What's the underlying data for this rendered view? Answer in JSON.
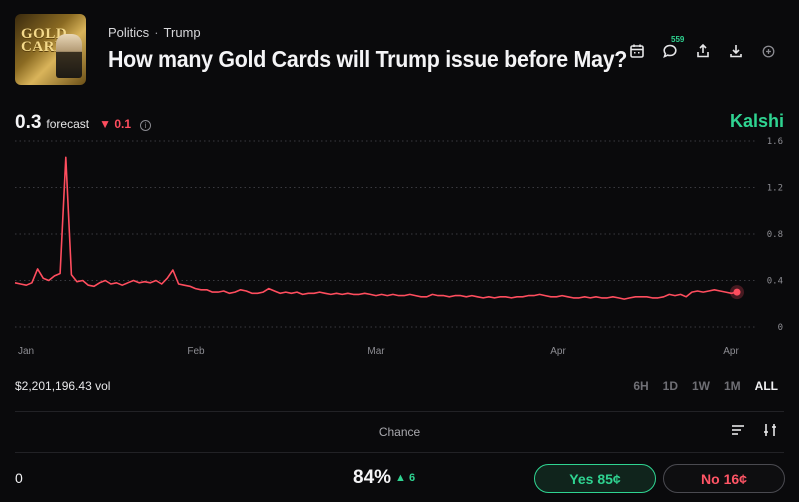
{
  "header": {
    "breadcrumb": [
      "Politics",
      "Trump"
    ],
    "breadcrumb_sep": "·",
    "title": "How many Gold Cards will Trump issue before May?",
    "thumbnail_text": "GOLD CARD",
    "comment_count": "559",
    "icons": [
      "calendar-icon",
      "comment-icon",
      "share-icon",
      "download-icon",
      "plus-circle-icon"
    ]
  },
  "forecast": {
    "value": "0.3",
    "label": "forecast",
    "delta_arrow": "▼",
    "delta": "0.1",
    "info": "i"
  },
  "brand": "Kalshi",
  "chart_data": {
    "type": "line",
    "x_ticks": [
      "Jan",
      "Feb",
      "Mar",
      "Apr",
      "Apr"
    ],
    "y_ticks": [
      "1.6",
      "1.2",
      "0.8",
      "0.4",
      "0"
    ],
    "ylim": [
      0,
      1.6
    ],
    "grid": true,
    "color": "#ff4d5e",
    "series": [
      {
        "values": [
          0.38,
          0.37,
          0.36,
          0.38,
          0.5,
          0.42,
          0.4,
          0.44,
          0.46,
          1.46,
          0.45,
          0.39,
          0.4,
          0.36,
          0.35,
          0.38,
          0.4,
          0.37,
          0.38,
          0.36,
          0.38,
          0.4,
          0.38,
          0.39,
          0.38,
          0.4,
          0.37,
          0.42,
          0.49,
          0.37,
          0.36,
          0.35,
          0.33,
          0.32,
          0.32,
          0.3,
          0.3,
          0.31,
          0.29,
          0.3,
          0.32,
          0.31,
          0.29,
          0.29,
          0.3,
          0.33,
          0.31,
          0.29,
          0.3,
          0.29,
          0.3,
          0.28,
          0.29,
          0.29,
          0.3,
          0.29,
          0.28,
          0.29,
          0.28,
          0.29,
          0.28,
          0.28,
          0.29,
          0.28,
          0.27,
          0.28,
          0.27,
          0.28,
          0.27,
          0.27,
          0.28,
          0.27,
          0.26,
          0.26,
          0.28,
          0.27,
          0.27,
          0.26,
          0.27,
          0.27,
          0.26,
          0.27,
          0.26,
          0.25,
          0.26,
          0.25,
          0.26,
          0.26,
          0.25,
          0.26,
          0.26,
          0.27,
          0.27,
          0.28,
          0.27,
          0.26,
          0.26,
          0.27,
          0.26,
          0.25,
          0.25,
          0.26,
          0.25,
          0.26,
          0.25,
          0.25,
          0.26,
          0.25,
          0.24,
          0.25,
          0.26,
          0.26,
          0.26,
          0.25,
          0.25,
          0.26,
          0.28,
          0.27,
          0.28,
          0.26,
          0.3,
          0.31,
          0.3,
          0.31,
          0.32,
          0.31,
          0.3,
          0.29,
          0.3
        ]
      }
    ]
  },
  "volume": "$2,201,196.43 vol",
  "ranges": [
    {
      "label": "6H",
      "active": false
    },
    {
      "label": "1D",
      "active": false
    },
    {
      "label": "1W",
      "active": false
    },
    {
      "label": "1M",
      "active": false
    },
    {
      "label": "ALL",
      "active": true
    }
  ],
  "table": {
    "header": "Chance",
    "rows": [
      {
        "outcome": "0",
        "chance": "84%",
        "delta_arrow": "▲",
        "delta": "6",
        "yes_label": "Yes 85¢",
        "no_label": "No 16¢"
      }
    ]
  },
  "colors": {
    "accent_green": "#2fd391",
    "accent_red": "#ff4d5e",
    "background": "#0a0a0c"
  }
}
